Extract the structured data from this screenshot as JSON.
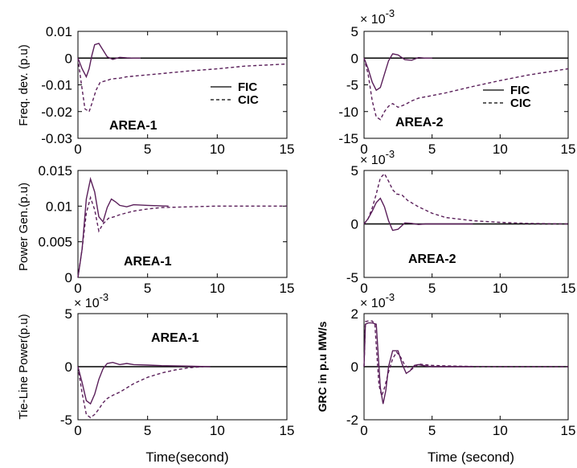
{
  "chart_data": [
    {
      "id": "p1",
      "type": "line",
      "ylabel": "Freq. dev. (p.u)",
      "xlabel": "",
      "annotation": "AREA-1",
      "exponent": "",
      "xlim": [
        0,
        15
      ],
      "ylim": [
        -0.03,
        0.01
      ],
      "xticks": [
        0,
        5,
        10,
        15
      ],
      "xtick_labels": [
        "0",
        "5",
        "10",
        "15"
      ],
      "yticks": [
        0.01,
        0,
        -0.01,
        -0.02,
        -0.03
      ],
      "ytick_labels": [
        "0.01",
        "0",
        "-0.01",
        "-0.02",
        "-0.03"
      ],
      "legend": {
        "entries": [
          "FIC",
          "CIC"
        ]
      },
      "zero_line": true,
      "series": [
        {
          "name": "FIC",
          "style": "solid",
          "x": [
            0,
            0.3,
            0.6,
            0.8,
            1.0,
            1.2,
            1.5,
            1.8,
            2.1,
            2.5,
            3.0,
            3.5,
            4.0,
            4.5
          ],
          "y": [
            0,
            -0.004,
            -0.007,
            -0.004,
            0.001,
            0.005,
            0.0055,
            0.003,
            0.0005,
            -0.0005,
            0.0003,
            0.0001,
            0,
            0
          ]
        },
        {
          "name": "CIC",
          "style": "dashed",
          "x": [
            0,
            0.2,
            0.5,
            0.8,
            1.0,
            1.3,
            1.6,
            2.0,
            2.4,
            3.0,
            3.5,
            4.5,
            6,
            8,
            10,
            12,
            15
          ],
          "y": [
            0,
            -0.008,
            -0.019,
            -0.02,
            -0.017,
            -0.012,
            -0.009,
            -0.0085,
            -0.0078,
            -0.0075,
            -0.007,
            -0.0065,
            -0.0058,
            -0.0048,
            -0.004,
            -0.003,
            -0.0022
          ]
        }
      ]
    },
    {
      "id": "p2",
      "type": "line",
      "ylabel": "",
      "xlabel": "",
      "annotation": "AREA-2",
      "exponent": "× 10",
      "exponent_sup": "-3",
      "xlim": [
        0,
        15
      ],
      "ylim": [
        -15,
        5
      ],
      "xticks": [
        0,
        5,
        10,
        15
      ],
      "xtick_labels": [
        "0",
        "5",
        "10",
        "15"
      ],
      "yticks": [
        5,
        0,
        -5,
        -10,
        -15
      ],
      "ytick_labels": [
        "5",
        "0",
        "-5",
        "-10",
        "-15"
      ],
      "legend": {
        "entries": [
          "FIC",
          "CIC"
        ]
      },
      "zero_line": true,
      "series": [
        {
          "name": "FIC",
          "style": "solid",
          "x": [
            0,
            0.3,
            0.6,
            0.9,
            1.2,
            1.5,
            1.8,
            2.1,
            2.5,
            3.0,
            3.5,
            4.0,
            4.5,
            5.0
          ],
          "y": [
            0,
            -2,
            -4.5,
            -6,
            -5.5,
            -3,
            -0.5,
            0.8,
            0.6,
            -0.3,
            -0.4,
            0.1,
            0,
            0
          ]
        },
        {
          "name": "CIC",
          "style": "dashed",
          "x": [
            0,
            0.3,
            0.6,
            0.9,
            1.2,
            1.5,
            1.8,
            2.1,
            2.5,
            3.0,
            3.5,
            4.0,
            5.0,
            6,
            8,
            10,
            12,
            15
          ],
          "y": [
            0,
            -3,
            -8,
            -11,
            -11.5,
            -10,
            -9,
            -8.5,
            -9.2,
            -8.7,
            -8,
            -7.5,
            -7,
            -6.5,
            -5.3,
            -4.2,
            -3.2,
            -2
          ]
        }
      ]
    },
    {
      "id": "p3",
      "type": "line",
      "ylabel": "Power Gen.(p.u)",
      "xlabel": "",
      "annotation": "AREA-1",
      "exponent": "",
      "xlim": [
        0,
        15
      ],
      "ylim": [
        0,
        0.015
      ],
      "xticks": [
        0,
        5,
        10,
        15
      ],
      "xtick_labels": [
        "0",
        "5",
        "10",
        "15"
      ],
      "yticks": [
        0.015,
        0.01,
        0.005,
        0
      ],
      "ytick_labels": [
        "0.015",
        "0.01",
        "0.005",
        "0"
      ],
      "zero_line": false,
      "series": [
        {
          "name": "FIC",
          "style": "solid",
          "x": [
            0,
            0.3,
            0.6,
            0.9,
            1.2,
            1.5,
            1.8,
            2.1,
            2.4,
            2.7,
            3.0,
            3.5,
            4.0,
            5.0,
            6.5
          ],
          "y": [
            0,
            0.004,
            0.011,
            0.0138,
            0.012,
            0.0085,
            0.0078,
            0.0098,
            0.011,
            0.0106,
            0.0101,
            0.0099,
            0.0102,
            0.0101,
            0.01
          ]
        },
        {
          "name": "CIC",
          "style": "dashed",
          "x": [
            0,
            0.3,
            0.6,
            0.9,
            1.2,
            1.5,
            1.8,
            2.2,
            2.6,
            3.0,
            4.0,
            5.0,
            6.0,
            8.0,
            10,
            15
          ],
          "y": [
            0,
            0.004,
            0.009,
            0.0112,
            0.0095,
            0.0065,
            0.0075,
            0.0083,
            0.0085,
            0.0088,
            0.0093,
            0.0096,
            0.0098,
            0.0099,
            0.01,
            0.01
          ]
        }
      ]
    },
    {
      "id": "p4",
      "type": "line",
      "ylabel": "",
      "xlabel": "",
      "annotation": "AREA-2",
      "exponent": "× 10",
      "exponent_sup": "-3",
      "xlim": [
        0,
        15
      ],
      "ylim": [
        -5,
        5
      ],
      "xticks": [
        0,
        5,
        10,
        15
      ],
      "xtick_labels": [
        "0",
        "5",
        "10",
        "15"
      ],
      "yticks": [
        5,
        0,
        -5
      ],
      "ytick_labels": [
        "5",
        "0",
        "-5"
      ],
      "zero_line": true,
      "series": [
        {
          "name": "FIC",
          "style": "solid",
          "x": [
            0,
            0.3,
            0.6,
            0.9,
            1.2,
            1.5,
            1.8,
            2.1,
            2.5,
            3.0,
            3.5,
            4.0,
            4.5,
            5,
            8
          ],
          "y": [
            0,
            0.5,
            1.2,
            2,
            2.4,
            1.6,
            0.3,
            -0.6,
            -0.5,
            0.1,
            0.05,
            -0.05,
            0,
            0,
            0
          ]
        },
        {
          "name": "CIC",
          "style": "dashed",
          "x": [
            0,
            0.3,
            0.6,
            0.9,
            1.2,
            1.5,
            1.8,
            2.1,
            2.4,
            2.8,
            3.2,
            4,
            5,
            6,
            8,
            10,
            12,
            15
          ],
          "y": [
            0,
            0.5,
            1.5,
            2.8,
            4.3,
            4.7,
            4,
            3.2,
            2.8,
            2.7,
            2.2,
            1.6,
            1,
            0.6,
            0.3,
            0.15,
            0.05,
            0
          ]
        }
      ]
    },
    {
      "id": "p5",
      "type": "line",
      "ylabel": "Tie-Line Power(p.u)",
      "xlabel": "Time(second)",
      "annotation": "AREA-1",
      "exponent": "× 10",
      "exponent_sup": "-3",
      "xlim": [
        0,
        15
      ],
      "ylim": [
        -5,
        5
      ],
      "xticks": [
        0,
        5,
        10,
        15
      ],
      "xtick_labels": [
        "0",
        "5",
        "10",
        "15"
      ],
      "yticks": [
        5,
        0,
        -5
      ],
      "ytick_labels": [
        "5",
        "0",
        "-5"
      ],
      "zero_line": true,
      "series": [
        {
          "name": "FIC",
          "style": "solid",
          "x": [
            0,
            0.3,
            0.6,
            0.9,
            1.2,
            1.5,
            1.8,
            2.1,
            2.5,
            3.0,
            3.5,
            4.0,
            5,
            6,
            8,
            9.5
          ],
          "y": [
            0,
            -1.5,
            -3.2,
            -3.5,
            -2.6,
            -1.2,
            -0.2,
            0.3,
            0.4,
            0.2,
            0.3,
            0.2,
            0.15,
            0.1,
            0.05,
            0
          ]
        },
        {
          "name": "CIC",
          "style": "dashed",
          "x": [
            0,
            0.3,
            0.6,
            0.9,
            1.2,
            1.5,
            1.8,
            2.1,
            2.5,
            3.0,
            3.5,
            4.0,
            5,
            6,
            7,
            8,
            9
          ],
          "y": [
            0,
            -2.5,
            -4.5,
            -4.8,
            -4.5,
            -4,
            -3.4,
            -3,
            -2.7,
            -2.4,
            -2,
            -1.6,
            -1,
            -0.6,
            -0.3,
            -0.1,
            0
          ]
        }
      ]
    },
    {
      "id": "p6",
      "type": "line",
      "ylabel": "GRC in p.u MW/s",
      "xlabel": "Time (second)",
      "annotation": "",
      "exponent": "× 10",
      "exponent_sup": "-3",
      "xlim": [
        0,
        15
      ],
      "ylim": [
        -2,
        2
      ],
      "xticks": [
        0,
        5,
        10,
        15
      ],
      "xtick_labels": [
        "0",
        "5",
        "10",
        "15"
      ],
      "yticks": [
        2,
        0,
        -2
      ],
      "ytick_labels": [
        "2",
        "0",
        "-2"
      ],
      "zero_line": true,
      "series": [
        {
          "name": "FIC",
          "style": "solid",
          "x": [
            0,
            0.1,
            0.3,
            0.6,
            0.9,
            1.0,
            1.2,
            1.4,
            1.6,
            1.8,
            2.1,
            2.5,
            2.8,
            3.1,
            3.4,
            3.7,
            4.0,
            4.5,
            5.0,
            6,
            8
          ],
          "y": [
            0,
            1.6,
            1.65,
            1.65,
            1.6,
            0.8,
            -0.8,
            -1.4,
            -0.9,
            0,
            0.6,
            0.6,
            0.1,
            -0.25,
            -0.15,
            0.05,
            0.08,
            0.03,
            0,
            0,
            0
          ]
        },
        {
          "name": "CIC",
          "style": "dashed",
          "x": [
            0,
            0.1,
            0.3,
            0.6,
            0.8,
            0.9,
            1.1,
            1.3,
            1.5,
            1.8,
            2.1,
            2.4,
            2.7,
            3,
            3.5,
            4,
            5,
            6,
            8,
            10,
            12,
            15
          ],
          "y": [
            0,
            1.7,
            1.72,
            1.72,
            1.6,
            0.8,
            -0.7,
            -1.1,
            -0.8,
            -0.2,
            0.3,
            0.55,
            0.35,
            0.05,
            -0.1,
            0.1,
            0.05,
            0.03,
            0.01,
            0,
            0,
            0
          ]
        }
      ]
    }
  ]
}
